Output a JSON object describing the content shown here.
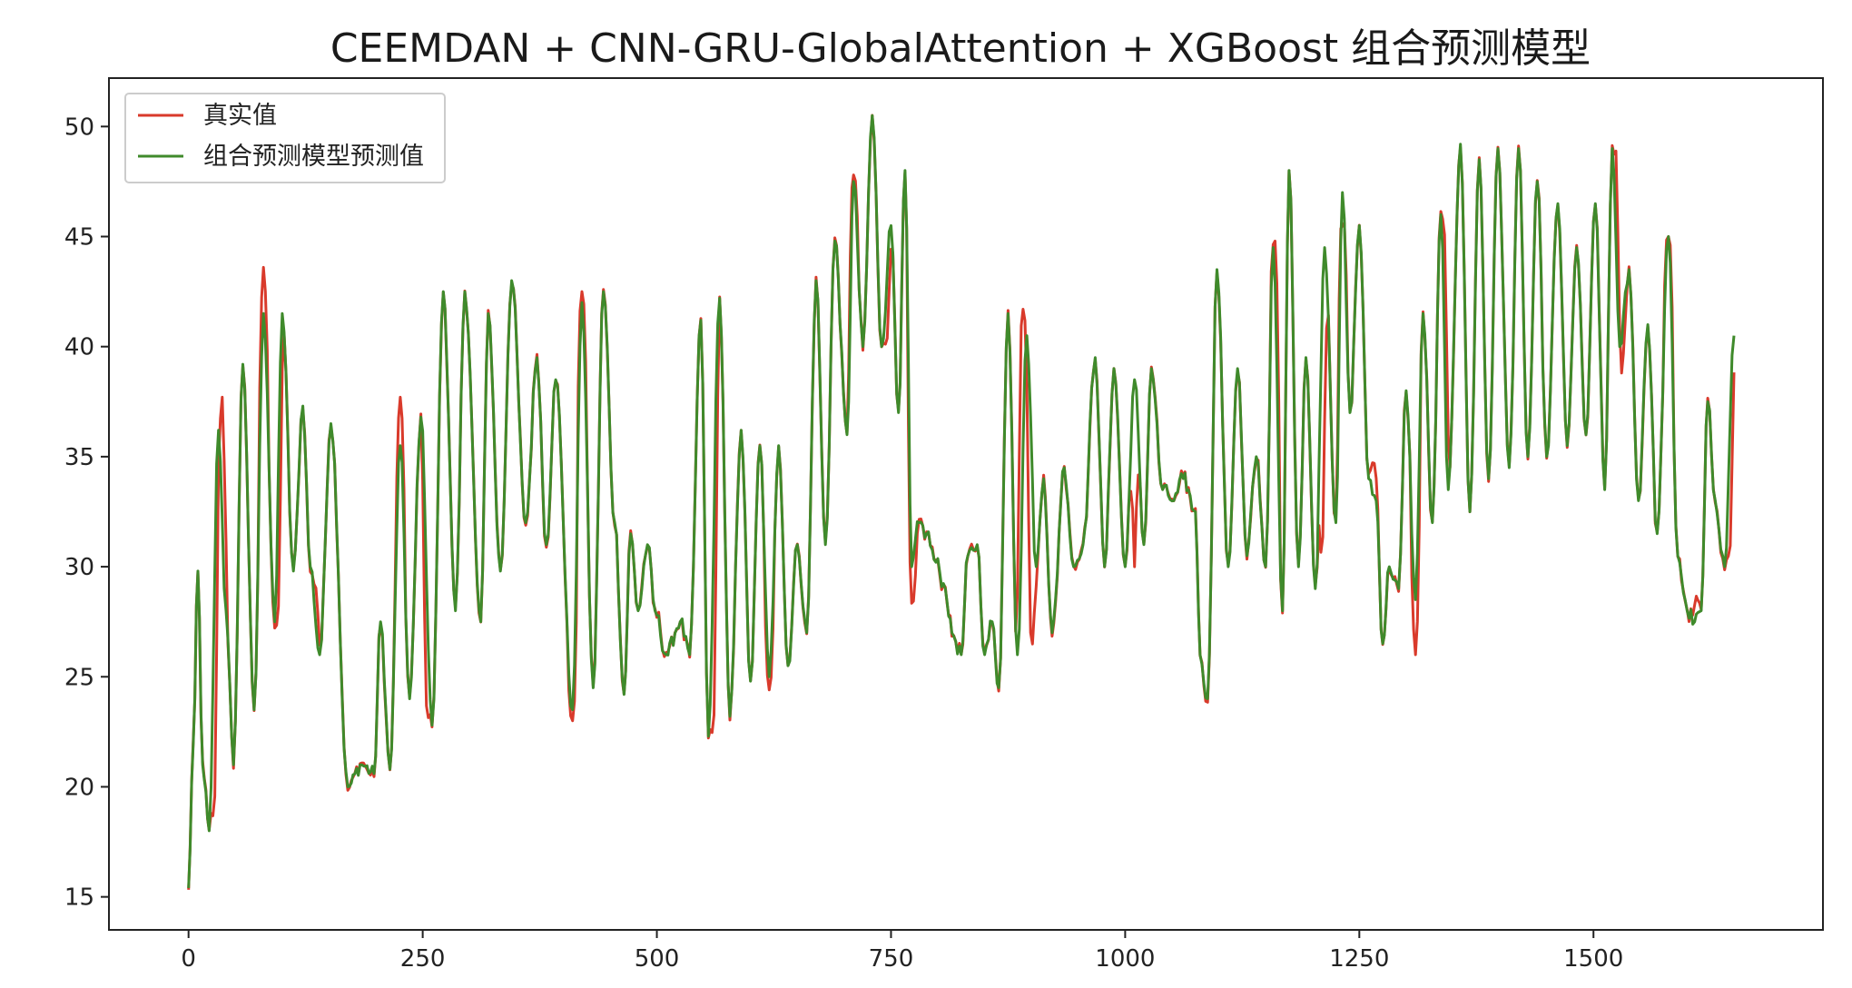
{
  "chart_data": {
    "type": "line",
    "title": "CEEMDAN + CNN-GRU-GlobalAttention + XGBoost 组合预测模型",
    "xlabel": "",
    "ylabel": "",
    "xlim": [
      -85,
      1745
    ],
    "ylim": [
      13.5,
      52.2
    ],
    "x_ticks": [
      0,
      250,
      500,
      750,
      1000,
      1250,
      1500
    ],
    "y_ticks": [
      15,
      20,
      25,
      30,
      35,
      40,
      45,
      50
    ],
    "grid": false,
    "legend_position": "top-left",
    "colors": {
      "actual": "#d93a2b",
      "predicted": "#3f8a2b"
    },
    "series": [
      {
        "name": "真实值",
        "color": "#d93a2b"
      },
      {
        "name": "组合预测模型预测值",
        "color": "#3f8a2b"
      }
    ],
    "anchor_points": {
      "predicted": [
        [
          0,
          15.4
        ],
        [
          5,
          22.0
        ],
        [
          10,
          29.8
        ],
        [
          15,
          21.0
        ],
        [
          22,
          18.0
        ],
        [
          32,
          36.2
        ],
        [
          40,
          28.0
        ],
        [
          48,
          21.0
        ],
        [
          58,
          39.2
        ],
        [
          70,
          23.5
        ],
        [
          80,
          41.5
        ],
        [
          92,
          27.5
        ],
        [
          100,
          41.5
        ],
        [
          112,
          29.8
        ],
        [
          122,
          37.3
        ],
        [
          130,
          30.0
        ],
        [
          140,
          26.0
        ],
        [
          152,
          36.5
        ],
        [
          170,
          20.0
        ],
        [
          185,
          21.0
        ],
        [
          198,
          20.6
        ],
        [
          205,
          27.5
        ],
        [
          215,
          20.8
        ],
        [
          226,
          35.5
        ],
        [
          236,
          24.0
        ],
        [
          248,
          36.8
        ],
        [
          260,
          22.8
        ],
        [
          272,
          42.5
        ],
        [
          285,
          28.0
        ],
        [
          295,
          42.5
        ],
        [
          312,
          27.5
        ],
        [
          320,
          41.5
        ],
        [
          333,
          29.8
        ],
        [
          345,
          43.0
        ],
        [
          360,
          32.0
        ],
        [
          372,
          39.5
        ],
        [
          382,
          31.0
        ],
        [
          392,
          38.5
        ],
        [
          410,
          23.5
        ],
        [
          420,
          42.0
        ],
        [
          432,
          24.5
        ],
        [
          443,
          42.5
        ],
        [
          455,
          32.0
        ],
        [
          465,
          24.2
        ],
        [
          472,
          31.5
        ],
        [
          480,
          28.0
        ],
        [
          490,
          31.0
        ],
        [
          498,
          28.0
        ],
        [
          510,
          26.0
        ],
        [
          525,
          27.5
        ],
        [
          535,
          26.0
        ],
        [
          547,
          41.2
        ],
        [
          555,
          22.3
        ],
        [
          567,
          42.2
        ],
        [
          578,
          23.2
        ],
        [
          590,
          36.2
        ],
        [
          600,
          24.8
        ],
        [
          610,
          35.5
        ],
        [
          620,
          25.0
        ],
        [
          630,
          35.5
        ],
        [
          640,
          25.5
        ],
        [
          650,
          31.0
        ],
        [
          660,
          27.0
        ],
        [
          670,
          43.0
        ],
        [
          680,
          31.0
        ],
        [
          690,
          44.8
        ],
        [
          703,
          36.0
        ],
        [
          710,
          47.5
        ],
        [
          720,
          40.0
        ],
        [
          730,
          50.5
        ],
        [
          740,
          40.0
        ],
        [
          750,
          45.5
        ],
        [
          758,
          37.0
        ],
        [
          765,
          48.0
        ],
        [
          772,
          30.0
        ],
        [
          780,
          32.0
        ],
        [
          788,
          31.5
        ],
        [
          798,
          30.2
        ],
        [
          808,
          29.0
        ],
        [
          815,
          27.0
        ],
        [
          825,
          26.0
        ],
        [
          832,
          30.5
        ],
        [
          842,
          31.0
        ],
        [
          850,
          26.0
        ],
        [
          858,
          27.5
        ],
        [
          865,
          24.5
        ],
        [
          875,
          41.5
        ],
        [
          885,
          26.0
        ],
        [
          895,
          40.5
        ],
        [
          905,
          30.0
        ],
        [
          913,
          34.0
        ],
        [
          922,
          27.0
        ],
        [
          935,
          34.5
        ],
        [
          945,
          30.0
        ],
        [
          955,
          31.0
        ],
        [
          968,
          39.5
        ],
        [
          978,
          30.0
        ],
        [
          988,
          39.0
        ],
        [
          1000,
          30.0
        ],
        [
          1010,
          38.5
        ],
        [
          1020,
          31.0
        ],
        [
          1028,
          39.0
        ],
        [
          1040,
          33.5
        ],
        [
          1052,
          33.0
        ],
        [
          1062,
          34.0
        ],
        [
          1075,
          32.5
        ],
        [
          1080,
          26.0
        ],
        [
          1088,
          24.0
        ],
        [
          1098,
          43.5
        ],
        [
          1110,
          30.0
        ],
        [
          1120,
          39.0
        ],
        [
          1130,
          30.5
        ],
        [
          1140,
          35.0
        ],
        [
          1150,
          30.0
        ],
        [
          1158,
          44.5
        ],
        [
          1168,
          28.0
        ],
        [
          1175,
          48.0
        ],
        [
          1185,
          30.0
        ],
        [
          1193,
          39.5
        ],
        [
          1203,
          29.0
        ],
        [
          1213,
          44.5
        ],
        [
          1225,
          32.0
        ],
        [
          1232,
          47.0
        ],
        [
          1240,
          37.0
        ],
        [
          1250,
          45.5
        ],
        [
          1260,
          34.0
        ],
        [
          1268,
          33.0
        ],
        [
          1275,
          26.5
        ],
        [
          1282,
          30.0
        ],
        [
          1292,
          29.0
        ],
        [
          1300,
          38.0
        ],
        [
          1310,
          28.5
        ],
        [
          1318,
          41.5
        ],
        [
          1328,
          32.0
        ],
        [
          1337,
          46.0
        ],
        [
          1345,
          33.5
        ],
        [
          1358,
          49.2
        ],
        [
          1368,
          32.5
        ],
        [
          1378,
          48.5
        ],
        [
          1388,
          34.0
        ],
        [
          1398,
          49.0
        ],
        [
          1410,
          34.5
        ],
        [
          1420,
          49.0
        ],
        [
          1430,
          35.0
        ],
        [
          1440,
          47.5
        ],
        [
          1450,
          35.0
        ],
        [
          1462,
          46.5
        ],
        [
          1472,
          35.5
        ],
        [
          1482,
          44.5
        ],
        [
          1492,
          36.0
        ],
        [
          1502,
          46.5
        ],
        [
          1512,
          33.5
        ],
        [
          1520,
          49.0
        ],
        [
          1528,
          40.0
        ],
        [
          1538,
          43.5
        ],
        [
          1548,
          33.0
        ],
        [
          1558,
          41.0
        ],
        [
          1568,
          31.5
        ],
        [
          1580,
          45.0
        ],
        [
          1590,
          30.5
        ],
        [
          1600,
          28.0
        ],
        [
          1608,
          27.5
        ],
        [
          1615,
          28.0
        ],
        [
          1622,
          37.5
        ],
        [
          1630,
          33.0
        ],
        [
          1640,
          30.0
        ],
        [
          1650,
          40.5
        ]
      ],
      "actual_deviations": [
        [
          27,
          17.5
        ],
        [
          36,
          37.7
        ],
        [
          80,
          43.6
        ],
        [
          95,
          26.9
        ],
        [
          135,
          29.4
        ],
        [
          226,
          37.7
        ],
        [
          255,
          22.5
        ],
        [
          410,
          23.0
        ],
        [
          420,
          42.5
        ],
        [
          560,
          21.5
        ],
        [
          620,
          24.4
        ],
        [
          710,
          47.8
        ],
        [
          745,
          39.8
        ],
        [
          773,
          28.0
        ],
        [
          890,
          43.0
        ],
        [
          900,
          25.0
        ],
        [
          1010,
          30.0
        ],
        [
          1160,
          44.8
        ],
        [
          1210,
          29.0
        ],
        [
          1232,
          45.5
        ],
        [
          1265,
          35.0
        ],
        [
          1310,
          26.0
        ],
        [
          1340,
          46.1
        ],
        [
          1525,
          49.7
        ],
        [
          1530,
          38.8
        ],
        [
          1580,
          45.0
        ],
        [
          1610,
          28.7
        ],
        [
          1645,
          29.8
        ]
      ]
    }
  }
}
